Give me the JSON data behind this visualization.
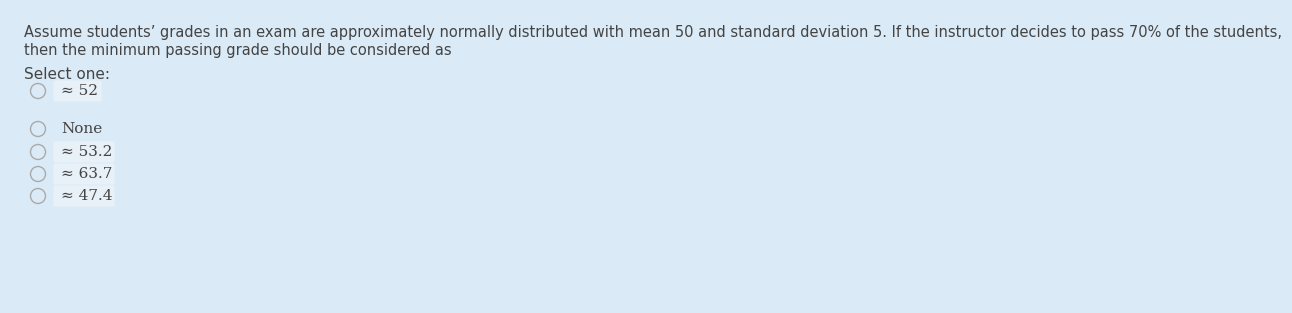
{
  "background_color": "#daeaf6",
  "text_color": "#444444",
  "question_line1": "Assume students’ grades in an exam are approximately normally distributed with mean 50 and standard deviation 5. If the instructor decides to pass 70% of the students,",
  "question_line2": "then the minimum passing grade should be considered as",
  "select_label": "Select one:",
  "options": [
    "≈ 52",
    "None",
    "≈ 53.2",
    "≈ 63.7",
    "≈ 47.4"
  ],
  "highlight_indices": [
    0,
    2,
    3,
    4
  ],
  "highlight_color": "#f0f4f8",
  "font_size_question": 10.5,
  "font_size_options": 11.0,
  "circle_edge_color": "#aaaaaa",
  "circle_face_color": "#daeaf6"
}
